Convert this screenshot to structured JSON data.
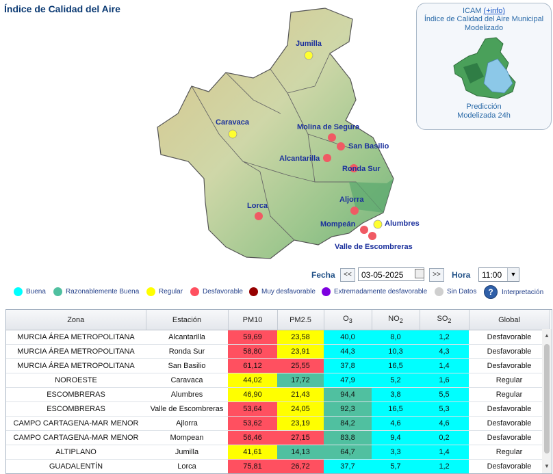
{
  "title": "Índice de Calidad del Aire",
  "icam": {
    "title": "ICAM",
    "info_link": "(+info)",
    "subtitle_line1": "Índice de Calidad del Aire Municipal",
    "subtitle_line2": "Modelizado",
    "prediction_line1": "Predicción",
    "prediction_line2": "Modelizada 24h"
  },
  "map_labels": {
    "jumilla": "Jumilla",
    "caravaca": "Caravaca",
    "molina": "Molina de Segura",
    "san_basilio": "San Basilio",
    "alcantarilla": "Alcantarilla",
    "ronda_sur": "Ronda Sur",
    "lorca": "Lorca",
    "aljorra": "Aljorra",
    "mompean": "Mompeán",
    "alumbres": "Alumbres",
    "valle": "Valle de Escombreras"
  },
  "controls": {
    "fecha_label": "Fecha",
    "prev": "<<",
    "date_value": "03-05-2025",
    "next": ">>",
    "hora_label": "Hora",
    "hour_value": "11:00"
  },
  "colors": {
    "buena": "#00ffff",
    "razonable": "#50c0a0",
    "regular": "#ffff00",
    "desfavorable": "#ff5060",
    "muy_desfavorable": "#960000",
    "extremadamente": "#7d00e0",
    "sin_datos": "#cfcfcf"
  },
  "legend": {
    "buena": "Buena",
    "razonable": "Razonablemente Buena",
    "regular": "Regular",
    "desfavorable": "Desfavorable",
    "muy_desfavorable": "Muy desfavorable",
    "extremadamente": "Extremadamente desfavorable",
    "sin_datos": "Sin Datos",
    "help_icon": "?",
    "interpretacion": "Interpretación"
  },
  "table": {
    "headers": {
      "zona": "Zona",
      "estacion": "Estación",
      "pm10": "PM10",
      "pm25": "PM2.5",
      "o3": "O",
      "o3_sub": "3",
      "no2": "NO",
      "no2_sub": "2",
      "so2": "SO",
      "so2_sub": "2",
      "global": "Global"
    },
    "rows": [
      [
        "MURCIA ÁREA METROPOLITANA",
        "Alcantarilla",
        "59,69",
        "23,58",
        "40,0",
        "8,0",
        "1,2",
        "Desfavorable"
      ],
      [
        "MURCIA ÁREA METROPOLITANA",
        "Ronda Sur",
        "58,80",
        "23,91",
        "44,3",
        "10,3",
        "4,3",
        "Desfavorable"
      ],
      [
        "MURCIA ÁREA METROPOLITANA",
        "San Basilio",
        "61,12",
        "25,55",
        "37,8",
        "16,5",
        "1,4",
        "Desfavorable"
      ],
      [
        "NOROESTE",
        "Caravaca",
        "44,02",
        "17,72",
        "47,9",
        "5,2",
        "1,6",
        "Regular"
      ],
      [
        "ESCOMBRERAS",
        "Alumbres",
        "46,90",
        "21,43",
        "94,4",
        "3,8",
        "5,5",
        "Regular"
      ],
      [
        "ESCOMBRERAS",
        "Valle de Escombreras",
        "53,64",
        "24,05",
        "92,3",
        "16,5",
        "5,3",
        "Desfavorable"
      ],
      [
        "CAMPO CARTAGENA-MAR MENOR",
        "Ajlorra",
        "53,62",
        "23,19",
        "84,2",
        "4,6",
        "4,6",
        "Desfavorable"
      ],
      [
        "CAMPO CARTAGENA-MAR MENOR",
        "Mompean",
        "56,46",
        "27,15",
        "83,8",
        "9,4",
        "0,2",
        "Desfavorable"
      ],
      [
        "ALTIPLANO",
        "Jumilla",
        "41,61",
        "14,13",
        "64,7",
        "3,3",
        "1,4",
        "Regular"
      ],
      [
        "GUADALENTÍN",
        "Lorca",
        "75,81",
        "26,72",
        "37,7",
        "5,7",
        "1,2",
        "Desfavorable"
      ]
    ],
    "row_colors": [
      [
        "desfavorable",
        "regular",
        "buena",
        "buena",
        "buena"
      ],
      [
        "desfavorable",
        "regular",
        "buena",
        "buena",
        "buena"
      ],
      [
        "desfavorable",
        "desfavorable",
        "buena",
        "buena",
        "buena"
      ],
      [
        "regular",
        "razonable",
        "buena",
        "buena",
        "buena"
      ],
      [
        "regular",
        "regular",
        "razonable",
        "buena",
        "buena"
      ],
      [
        "desfavorable",
        "regular",
        "razonable",
        "buena",
        "buena"
      ],
      [
        "desfavorable",
        "regular",
        "razonable",
        "buena",
        "buena"
      ],
      [
        "desfavorable",
        "desfavorable",
        "razonable",
        "buena",
        "buena"
      ],
      [
        "regular",
        "razonable",
        "razonable",
        "buena",
        "buena"
      ],
      [
        "desfavorable",
        "desfavorable",
        "buena",
        "buena",
        "buena"
      ]
    ]
  }
}
